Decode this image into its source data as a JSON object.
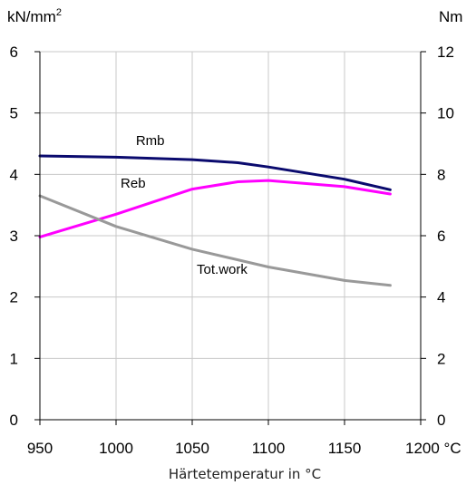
{
  "chart_data": {
    "type": "line",
    "ylabel_left_unit": "kN/mm",
    "ylabel_left_unit_sup": "2",
    "ylabel_right_unit": "Nm",
    "xlabel": "Härtetemperatur in °C",
    "x_ticks": [
      "950",
      "1000",
      "1050",
      "1100",
      "1150",
      "1200 °C"
    ],
    "y_left_ticks": [
      "0",
      "1",
      "2",
      "3",
      "4",
      "5",
      "6"
    ],
    "y_right_ticks": [
      "0",
      "2",
      "4",
      "6",
      "8",
      "10",
      "12"
    ],
    "xlim": [
      950,
      1200
    ],
    "ylim_left": [
      0,
      6
    ],
    "ylim_right": [
      0,
      12
    ],
    "grid": true,
    "series": [
      {
        "name": "Rmb",
        "color": "#0a0a6e",
        "axis": "left",
        "x": [
          950,
          1000,
          1050,
          1080,
          1100,
          1150,
          1180
        ],
        "y": [
          4.3,
          4.28,
          4.24,
          4.19,
          4.12,
          3.92,
          3.75
        ]
      },
      {
        "name": "Reb",
        "color": "#ff00ff",
        "axis": "left",
        "x": [
          950,
          1000,
          1050,
          1080,
          1100,
          1150,
          1180
        ],
        "y": [
          2.98,
          3.35,
          3.76,
          3.88,
          3.9,
          3.8,
          3.68
        ]
      },
      {
        "name": "Tot.work",
        "color": "#999999",
        "axis": "left",
        "x": [
          950,
          1000,
          1050,
          1100,
          1150,
          1180
        ],
        "y": [
          3.65,
          3.15,
          2.78,
          2.49,
          2.27,
          2.19
        ]
      }
    ]
  }
}
